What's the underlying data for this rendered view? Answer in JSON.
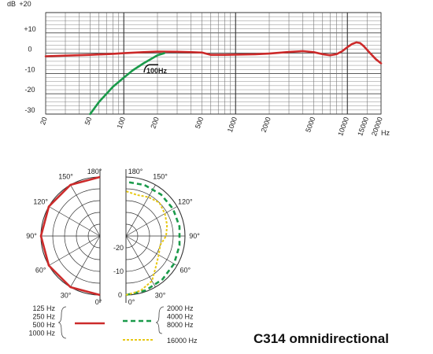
{
  "chart_data": [
    {
      "type": "line",
      "title": "",
      "xlabel": "",
      "ylabel": "",
      "xscale": "log",
      "xlim": [
        20,
        20000
      ],
      "ylim": [
        -30,
        20
      ],
      "y_unit": "dB",
      "x_unit": "Hz",
      "yticks": [
        "+20",
        "+10",
        "0",
        "-10",
        "-20",
        "-30"
      ],
      "xticks": [
        "20",
        "50",
        "100",
        "200",
        "500",
        "1000",
        "2000",
        "5000",
        "10000",
        "15000",
        "20000"
      ],
      "grid": true,
      "annotation": "100Hz",
      "series": [
        {
          "color": "#cc2a2a",
          "style": "solid",
          "x": [
            20,
            30,
            50,
            80,
            100,
            150,
            200,
            300,
            400,
            500,
            600,
            800,
            1000,
            1500,
            2000,
            3000,
            4000,
            5000,
            6000,
            7000,
            8000,
            9000,
            10000,
            11000,
            12000,
            13000,
            14000,
            16000,
            18000,
            20000
          ],
          "y": [
            -1.5,
            -1.2,
            -0.8,
            -0.3,
            0,
            0.5,
            0.8,
            0.7,
            0.5,
            0.3,
            -0.8,
            -0.8,
            -0.7,
            -0.5,
            -0.2,
            0.6,
            1.0,
            0.5,
            -0.5,
            -1.0,
            -0.5,
            1.0,
            3.0,
            4.5,
            5.3,
            5.0,
            3.5,
            0.0,
            -3.0,
            -5.0
          ]
        },
        {
          "color": "#1a9a4a",
          "style": "solid",
          "x": [
            50,
            60,
            70,
            80,
            100,
            120,
            150,
            200,
            230
          ],
          "y": [
            -30,
            -24,
            -20,
            -16.5,
            -12,
            -8.5,
            -5,
            -1,
            0
          ]
        }
      ]
    },
    {
      "type": "polar",
      "title": "C314 omnidirectional",
      "angle_labels_left": [
        "180°",
        "150°",
        "120°",
        "90°",
        "60°",
        "30°",
        "0°"
      ],
      "angle_labels_right": [
        "180°",
        "150°",
        "120°",
        "90°",
        "60°",
        "30°",
        "0°"
      ],
      "radial_labels": [
        "-20",
        "-10",
        "0"
      ],
      "rlim": [
        -25,
        0
      ],
      "legend": [
        {
          "labels": [
            "125 Hz",
            "250 Hz",
            "500 Hz",
            "1000 Hz"
          ],
          "color": "#cc2a2a",
          "style": "solid"
        },
        {
          "labels": [
            "2000 Hz",
            "4000 Hz",
            "8000 Hz"
          ],
          "color": "#1a9a4a",
          "style": "dashed"
        },
        {
          "labels": [
            "16000 Hz"
          ],
          "color": "#e8c814",
          "style": "dotted"
        }
      ],
      "series": [
        {
          "side": "left",
          "color": "#cc2a2a",
          "style": "solid",
          "angle": [
            0,
            30,
            60,
            90,
            120,
            150,
            180
          ],
          "r": [
            0,
            0,
            0,
            0,
            0,
            0,
            0
          ]
        },
        {
          "side": "right",
          "color": "#1a9a4a",
          "style": "dashed",
          "angle": [
            0,
            20,
            40,
            60,
            80,
            100,
            120,
            140,
            160,
            180
          ],
          "r": [
            0,
            -0.5,
            -1,
            -1.5,
            -2,
            -2,
            -2,
            -2,
            -2,
            -2
          ]
        },
        {
          "side": "right",
          "color": "#e8c814",
          "style": "dotted",
          "angle": [
            0,
            15,
            30,
            45,
            60,
            75,
            90,
            105,
            120,
            135,
            150,
            165,
            180
          ],
          "r": [
            0,
            -1,
            -3,
            -7,
            -9,
            -10,
            -8,
            -7,
            -6,
            -5,
            -6,
            -7,
            -6
          ]
        }
      ]
    }
  ]
}
